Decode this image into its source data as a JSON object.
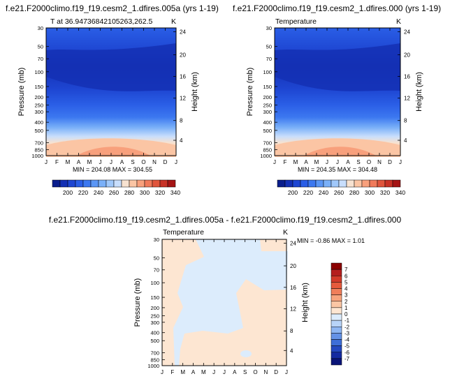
{
  "chart_data": [
    {
      "type": "heatmap",
      "title": "f.e21.F2000climo.f19_f19.cesm2_1.dfires.005a (yrs 1-19)",
      "subtitle_left": "T at 36.94736842105263,262.5",
      "units": "K",
      "ylabel": "Pressure (mb)",
      "ylabel_right": "Height (km)",
      "x_ticks": [
        "J",
        "F",
        "M",
        "A",
        "M",
        "J",
        "J",
        "A",
        "S",
        "O",
        "N",
        "D",
        "J"
      ],
      "pressure_ticks": [
        "30",
        "50",
        "70",
        "100",
        "150",
        "200",
        "250",
        "300",
        "400",
        "500",
        "700",
        "850",
        "1000"
      ],
      "height_ticks": [
        "24",
        "20",
        "16",
        "12",
        "8",
        "4"
      ],
      "stats_text": "MIN = 204.08  MAX = 304.55",
      "min": 204.08,
      "max": 304.55,
      "colorbar_labels": [
        "200",
        "220",
        "240",
        "260",
        "280",
        "300",
        "320",
        "340"
      ]
    },
    {
      "type": "heatmap",
      "title": "f.e21.F2000climo.f19_f19.cesm2_1.dfires.000 (yrs 1-19)",
      "subtitle_left": "Temperature",
      "units": "K",
      "ylabel": "Pressure (mb)",
      "ylabel_right": "Height (km)",
      "x_ticks": [
        "J",
        "F",
        "M",
        "A",
        "M",
        "J",
        "J",
        "A",
        "S",
        "O",
        "N",
        "D",
        "J"
      ],
      "pressure_ticks": [
        "30",
        "50",
        "70",
        "100",
        "150",
        "200",
        "250",
        "300",
        "400",
        "500",
        "700",
        "850",
        "1000"
      ],
      "height_ticks": [
        "24",
        "20",
        "16",
        "12",
        "8",
        "4"
      ],
      "stats_text": "MIN = 204.35  MAX = 304.48",
      "min": 204.35,
      "max": 304.48,
      "colorbar_labels": [
        "200",
        "220",
        "240",
        "260",
        "280",
        "300",
        "320",
        "340"
      ]
    },
    {
      "type": "heatmap",
      "title": "f.e21.F2000climo.f19_f19.cesm2_1.dfires.005a - f.e21.F2000climo.f19_f19.cesm2_1.dfires.000",
      "subtitle_left": "Temperature",
      "units": "K",
      "ylabel": "Pressure (mb)",
      "ylabel_right": "Height (km)",
      "x_ticks": [
        "J",
        "F",
        "M",
        "A",
        "M",
        "J",
        "J",
        "A",
        "S",
        "O",
        "N",
        "D",
        "J"
      ],
      "pressure_ticks": [
        "30",
        "50",
        "70",
        "100",
        "150",
        "200",
        "250",
        "300",
        "400",
        "500",
        "700",
        "850",
        "1000"
      ],
      "height_ticks": [
        "24",
        "20",
        "16",
        "12",
        "8",
        "4"
      ],
      "stats_text": "MIN =  -0.86  MAX =   1.01",
      "min": -0.86,
      "max": 1.01,
      "colorbar_labels": [
        "7",
        "6",
        "5",
        "4",
        "3",
        "2",
        "1",
        "0",
        "-1",
        "-2",
        "-3",
        "-4",
        "-5",
        "-6",
        "-7"
      ]
    }
  ],
  "colors": {
    "seq": [
      "#0a1e8c",
      "#1430b4",
      "#1e46d2",
      "#2a5ee6",
      "#3c78f0",
      "#5a96f5",
      "#7ab0f8",
      "#a0c8fa",
      "#c8defc",
      "#f7e2d0",
      "#fbc5a4",
      "#f8a07c",
      "#f07a5a",
      "#e0553c",
      "#c83226",
      "#a51414"
    ],
    "div": [
      "#8b0000",
      "#b41e1e",
      "#d23a2a",
      "#e65a3c",
      "#f07e5a",
      "#f7a47e",
      "#fbc6a4",
      "#fde6d2",
      "#dcecfc",
      "#b8d4f8",
      "#8eb6f2",
      "#6492e6",
      "#3e6ed8",
      "#2448c0",
      "#142aa0",
      "#0a1478"
    ],
    "diff_pos": "#fde6d2",
    "diff_neg": "#dcecfc"
  }
}
